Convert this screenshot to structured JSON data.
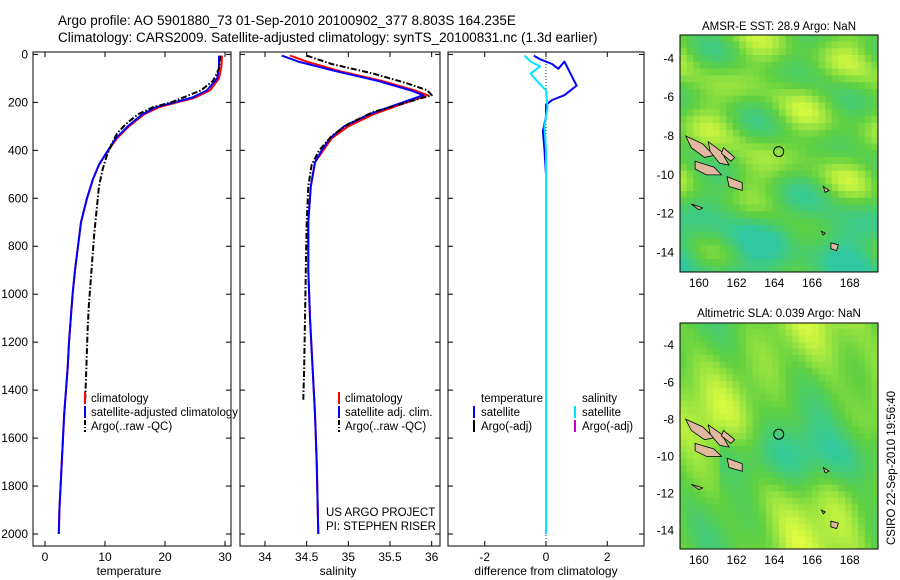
{
  "header": {
    "line1": "Argo profile: AO 5901880_73 01-Sep-2010 20100902_377 8.803S 164.235E",
    "line2": "Climatology: CARS2009. Satellite-adjusted climatology: synTS_20100831.nc (1.3d earlier)"
  },
  "colors": {
    "climatology": "#ff0000",
    "satellite": "#0000ff",
    "argo": "#000000",
    "salinity_satellite": "#00e5ff",
    "salinity_argo": "#cc00cc",
    "land": "#e0b8a0",
    "map_high": "#e8ff40",
    "map_mid": "#60d040",
    "map_low": "#30c8a0"
  },
  "chart_data": [
    {
      "type": "line",
      "id": "temperature",
      "xlabel": "temperature",
      "ylabel": "",
      "xlim": [
        -2,
        31
      ],
      "ylim": [
        2050,
        0
      ],
      "xticks": [
        "0",
        "10",
        "20",
        "30"
      ],
      "yticks": [
        "0",
        "200",
        "400",
        "600",
        "800",
        "1000",
        "1200",
        "1400",
        "1600",
        "1800",
        "2000"
      ],
      "legend": [
        "climatology",
        "satellite-adjusted climatology",
        "Argo(..raw -QC)"
      ],
      "series": [
        {
          "name": "climatology",
          "color": "red",
          "style": "solid",
          "x": [
            29.5,
            29.4,
            29.0,
            27.5,
            25.0,
            22.0,
            19.0,
            16.5,
            14.0,
            12.0,
            10.0,
            9.0,
            8.0,
            7.0,
            6.0,
            5.5,
            5.0,
            4.6,
            4.3,
            4.0,
            3.8,
            3.5,
            3.2,
            3.0,
            2.8,
            2.6,
            2.4,
            2.3
          ],
          "y": [
            5,
            50,
            100,
            150,
            180,
            200,
            220,
            250,
            300,
            350,
            420,
            460,
            520,
            600,
            700,
            800,
            900,
            1000,
            1100,
            1200,
            1300,
            1400,
            1500,
            1600,
            1700,
            1800,
            1900,
            2000
          ]
        },
        {
          "name": "satellite-adjusted climatology",
          "color": "blue",
          "style": "solid",
          "x": [
            29.0,
            29.0,
            28.7,
            27.0,
            24.5,
            21.5,
            18.5,
            16.2,
            13.8,
            11.8,
            10.0,
            9.0,
            8.0,
            7.0,
            6.0,
            5.5,
            5.0,
            4.6,
            4.3,
            4.0,
            3.8,
            3.5,
            3.2,
            3.0,
            2.8,
            2.6,
            2.4,
            2.3
          ],
          "y": [
            5,
            50,
            100,
            150,
            180,
            200,
            220,
            250,
            300,
            350,
            420,
            460,
            520,
            600,
            700,
            800,
            900,
            1000,
            1100,
            1200,
            1300,
            1400,
            1500,
            1600,
            1700,
            1800,
            1900,
            2000
          ]
        },
        {
          "name": "Argo(..raw -QC)",
          "color": "black",
          "style": "dashdot",
          "x": [
            29.2,
            29.0,
            28.0,
            26.0,
            23.0,
            21.0,
            18.0,
            15.5,
            13.5,
            12.0,
            11.0,
            10.2,
            9.6,
            9.0,
            8.6,
            8.2,
            7.9,
            7.6,
            7.3,
            7.1,
            6.9,
            6.7
          ],
          "y": [
            5,
            60,
            110,
            150,
            180,
            200,
            220,
            250,
            290,
            330,
            380,
            430,
            480,
            550,
            650,
            750,
            850,
            950,
            1050,
            1150,
            1300,
            1440
          ]
        }
      ]
    },
    {
      "type": "line",
      "id": "salinity",
      "xlabel": "salinity",
      "ylabel": "",
      "xlim": [
        33.7,
        36.1
      ],
      "ylim": [
        2050,
        0
      ],
      "xticks": [
        "34",
        "34.5",
        "35",
        "35.5",
        "36"
      ],
      "legend": [
        "climatology",
        "satellite adj. clim.",
        "Argo(..raw -QC)"
      ],
      "annotations": [
        "US ARGO PROJECT",
        "PI: STEPHEN RISER"
      ],
      "series": [
        {
          "name": "climatology",
          "color": "red",
          "style": "solid",
          "x": [
            34.3,
            34.5,
            34.9,
            35.4,
            35.8,
            35.95,
            35.7,
            35.3,
            35.0,
            34.8,
            34.7,
            34.6,
            34.55,
            34.52,
            34.52,
            34.54,
            34.57,
            34.6,
            34.62,
            34.64
          ],
          "y": [
            5,
            30,
            70,
            110,
            150,
            170,
            200,
            250,
            300,
            350,
            400,
            450,
            550,
            700,
            900,
            1100,
            1300,
            1500,
            1700,
            2000
          ]
        },
        {
          "name": "satellite adj. clim.",
          "color": "blue",
          "style": "solid",
          "x": [
            34.2,
            34.4,
            34.85,
            35.35,
            35.75,
            35.9,
            35.65,
            35.25,
            34.95,
            34.78,
            34.68,
            34.6,
            34.55,
            34.52,
            34.52,
            34.54,
            34.57,
            34.6,
            34.62,
            34.64
          ],
          "y": [
            5,
            30,
            70,
            110,
            150,
            170,
            200,
            250,
            300,
            350,
            400,
            450,
            550,
            700,
            900,
            1100,
            1300,
            1500,
            1700,
            2000
          ]
        },
        {
          "name": "Argo(..raw -QC)",
          "color": "black",
          "style": "dashdot",
          "x": [
            34.5,
            34.8,
            35.3,
            35.7,
            35.95,
            36.0,
            35.7,
            35.3,
            35.0,
            34.8,
            34.65,
            34.56,
            34.52,
            34.5,
            34.49,
            34.48,
            34.47,
            34.46
          ],
          "y": [
            5,
            40,
            80,
            120,
            150,
            170,
            200,
            240,
            290,
            340,
            400,
            460,
            550,
            700,
            900,
            1100,
            1300,
            1440
          ]
        }
      ]
    },
    {
      "type": "line",
      "id": "difference",
      "xlabel": "difference from climatology",
      "ylabel": "",
      "xlim": [
        -3.2,
        3.2
      ],
      "ylim": [
        2050,
        0
      ],
      "xticks": [
        "-2",
        "0",
        "2"
      ],
      "legend_titles": [
        "temperature",
        "salinity"
      ],
      "legend": [
        "satellite",
        "Argo(-adj)",
        "satellite",
        "Argo(-adj)"
      ],
      "series": [
        {
          "name": "temperature satellite",
          "color": "blue",
          "style": "solid",
          "x": [
            -0.4,
            -0.2,
            0.2,
            0.4,
            0.6,
            1.0,
            0.6,
            0.2,
            0.0,
            0.0,
            -0.1,
            -0.05,
            0.0,
            0.0,
            0.0,
            0.0
          ],
          "y": [
            5,
            20,
            40,
            60,
            30,
            130,
            170,
            190,
            210,
            260,
            320,
            400,
            500,
            700,
            1200,
            2000
          ]
        },
        {
          "name": "salinity satellite",
          "color": "cyan",
          "style": "solid",
          "x": [
            -0.7,
            -0.5,
            -0.2,
            -0.5,
            -0.3,
            0.0,
            0.05,
            -0.05,
            0.0,
            0.0,
            0.0,
            0.0
          ],
          "y": [
            5,
            30,
            50,
            80,
            110,
            150,
            220,
            300,
            400,
            600,
            1200,
            2000
          ]
        }
      ]
    },
    {
      "type": "heatmap",
      "id": "sst_map",
      "title": "AMSR-E SST: 28.9 Argo: NaN",
      "xticks": [
        "160",
        "162",
        "164",
        "166",
        "168"
      ],
      "yticks": [
        "-4",
        "-6",
        "-8",
        "-10",
        "-12",
        "-14"
      ],
      "xlim": [
        159,
        169.5
      ],
      "ylim": [
        -15,
        -2.8
      ],
      "marker": {
        "lon": 164.235,
        "lat": -8.803
      }
    },
    {
      "type": "heatmap",
      "id": "sla_map",
      "title": "Altimetric SLA: 0.039 Argo: NaN",
      "xticks": [
        "160",
        "162",
        "164",
        "166",
        "168"
      ],
      "yticks": [
        "-4",
        "-6",
        "-8",
        "-10",
        "-12",
        "-14"
      ],
      "xlim": [
        159,
        169.5
      ],
      "ylim": [
        -15,
        -2.8
      ],
      "marker": {
        "lon": 164.235,
        "lat": -8.803
      }
    }
  ],
  "footer": {
    "credit": "CSIRO 22-Sep-2010 19:56:40"
  }
}
